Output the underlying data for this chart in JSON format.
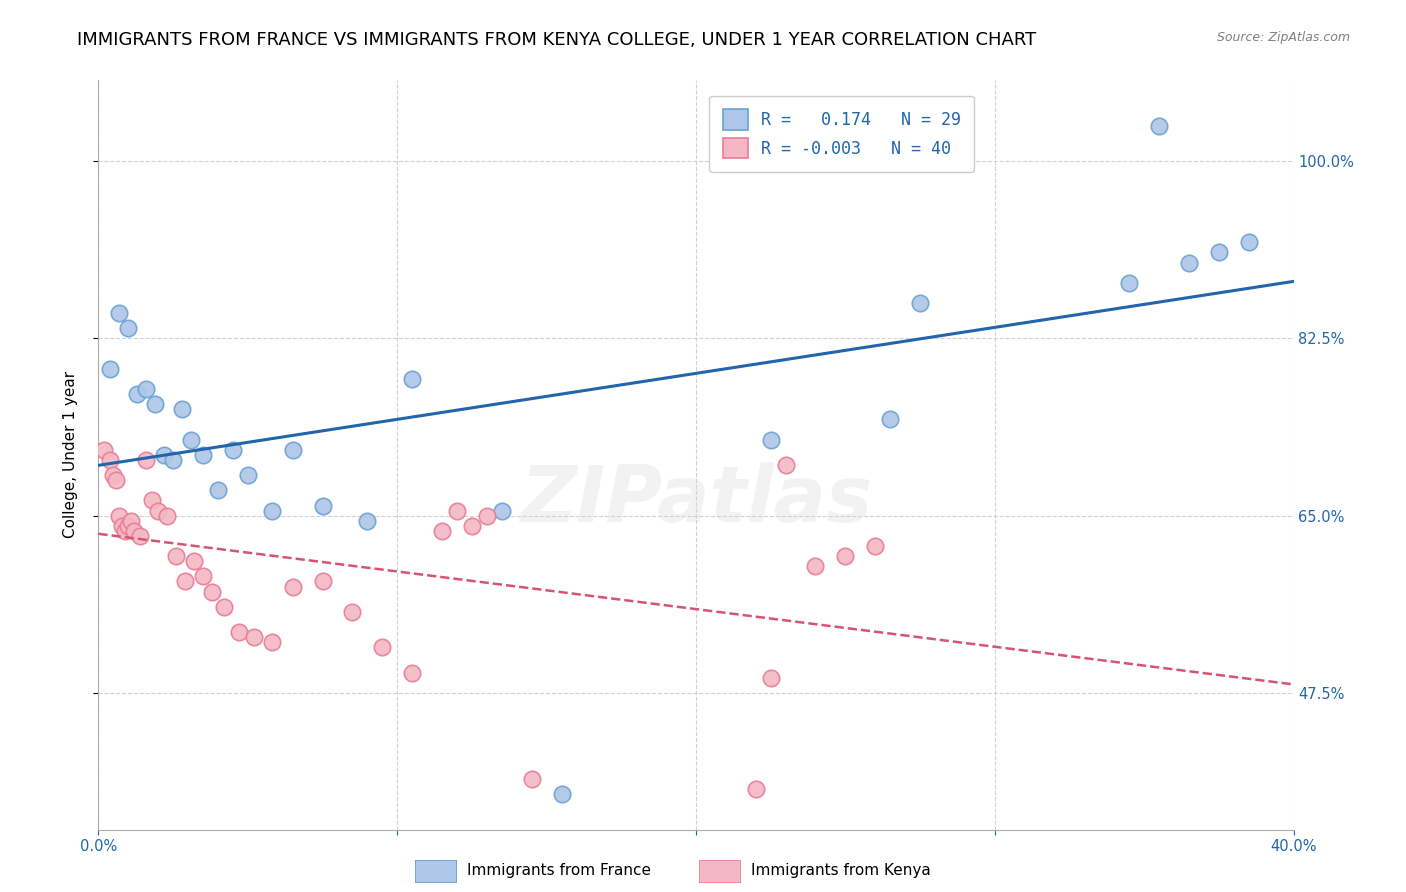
{
  "title": "IMMIGRANTS FROM FRANCE VS IMMIGRANTS FROM KENYA COLLEGE, UNDER 1 YEAR CORRELATION CHART",
  "source": "Source: ZipAtlas.com",
  "ylabel": "College, Under 1 year",
  "x_min": 0.0,
  "x_max": 40.0,
  "y_min": 34.0,
  "y_max": 108.0,
  "y_ticks": [
    47.5,
    65.0,
    82.5,
    100.0
  ],
  "y_tick_labels": [
    "47.5%",
    "65.0%",
    "82.5%",
    "100.0%"
  ],
  "blue_scatter_x": [
    0.4,
    0.7,
    1.0,
    1.3,
    1.6,
    1.9,
    2.2,
    2.5,
    2.8,
    3.1,
    3.5,
    4.0,
    4.5,
    5.0,
    5.8,
    6.5,
    7.5,
    9.0,
    10.5,
    13.5,
    15.5,
    22.5,
    26.5,
    27.5,
    34.5,
    35.5,
    36.5,
    37.5,
    38.5
  ],
  "blue_scatter_y": [
    79.5,
    85.0,
    83.5,
    77.0,
    77.5,
    76.0,
    71.0,
    70.5,
    75.5,
    72.5,
    71.0,
    67.5,
    71.5,
    69.0,
    65.5,
    71.5,
    66.0,
    64.5,
    78.5,
    65.5,
    37.5,
    72.5,
    74.5,
    86.0,
    88.0,
    103.5,
    90.0,
    91.0,
    92.0
  ],
  "pink_scatter_x": [
    0.2,
    0.4,
    0.5,
    0.6,
    0.7,
    0.8,
    0.9,
    1.0,
    1.1,
    1.2,
    1.4,
    1.6,
    1.8,
    2.0,
    2.3,
    2.6,
    2.9,
    3.2,
    3.5,
    3.8,
    4.2,
    4.7,
    5.2,
    5.8,
    6.5,
    7.5,
    8.5,
    9.5,
    10.5,
    11.5,
    12.0,
    12.5,
    13.0,
    14.5,
    22.0,
    22.5,
    23.0,
    24.0,
    25.0,
    26.0
  ],
  "pink_scatter_y": [
    71.5,
    70.5,
    69.0,
    68.5,
    65.0,
    64.0,
    63.5,
    64.0,
    64.5,
    63.5,
    63.0,
    70.5,
    66.5,
    65.5,
    65.0,
    61.0,
    58.5,
    60.5,
    59.0,
    57.5,
    56.0,
    53.5,
    53.0,
    52.5,
    58.0,
    58.5,
    55.5,
    52.0,
    49.5,
    63.5,
    65.5,
    64.0,
    65.0,
    39.0,
    38.0,
    49.0,
    70.0,
    60.0,
    61.0,
    62.0
  ],
  "blue_line_color": "#2166ac",
  "pink_line_color": "#d6546e",
  "scatter_blue_face": "#aec6e8",
  "scatter_blue_edge": "#6ba3d0",
  "scatter_pink_face": "#f4b8c4",
  "scatter_pink_edge": "#e87d96",
  "background_color": "#ffffff",
  "grid_color": "#cccccc",
  "watermark": "ZIPatlas",
  "title_fontsize": 13,
  "axis_label_fontsize": 11,
  "tick_fontsize": 10.5,
  "legend_r_blue": "R =   0.174   N = 29",
  "legend_r_pink": "R = -0.003   N = 40",
  "legend_label_blue": "Immigrants from France",
  "legend_label_pink": "Immigrants from Kenya"
}
